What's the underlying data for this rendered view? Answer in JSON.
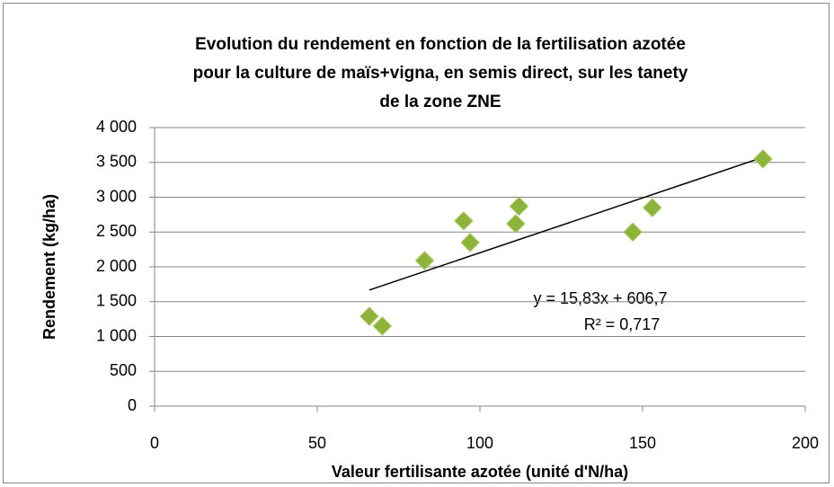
{
  "chart_data": {
    "type": "scatter",
    "title": [
      "Evolution du rendement en fonction de la fertilisation azotée",
      "pour la culture de maïs+vigna, en semis direct, sur les tanety",
      "de la zone ZNE"
    ],
    "x_label": "Valeur fertilisante azotée (unité d'N/ha)",
    "y_label": "Rendement (kg/ha)",
    "x": [
      66,
      70,
      83,
      95,
      97,
      111,
      112,
      147,
      153,
      187
    ],
    "values": [
      1290,
      1150,
      2090,
      2660,
      2350,
      2620,
      2870,
      2500,
      2850,
      3550
    ],
    "color": "#8db33a",
    "trendline": true,
    "annotations": [
      "y = 15,83x + 606,7",
      "R² = 0,717"
    ],
    "xlim": [
      0,
      200
    ],
    "xticks": [
      0,
      50,
      100,
      150,
      200
    ],
    "ylim": [
      0,
      4000
    ],
    "yticks": [
      0,
      500,
      {
        "value": 1000,
        "label": "1 000"
      },
      {
        "value": 1500,
        "label": "1 500"
      },
      {
        "value": 2000,
        "label": "2 000"
      },
      {
        "value": 2500,
        "label": "2 500"
      },
      {
        "value": 3000,
        "label": "3 000"
      },
      {
        "value": 3500,
        "label": "3 500"
      },
      {
        "value": 4000,
        "label": "4 000"
      }
    ],
    "grid": true
  }
}
